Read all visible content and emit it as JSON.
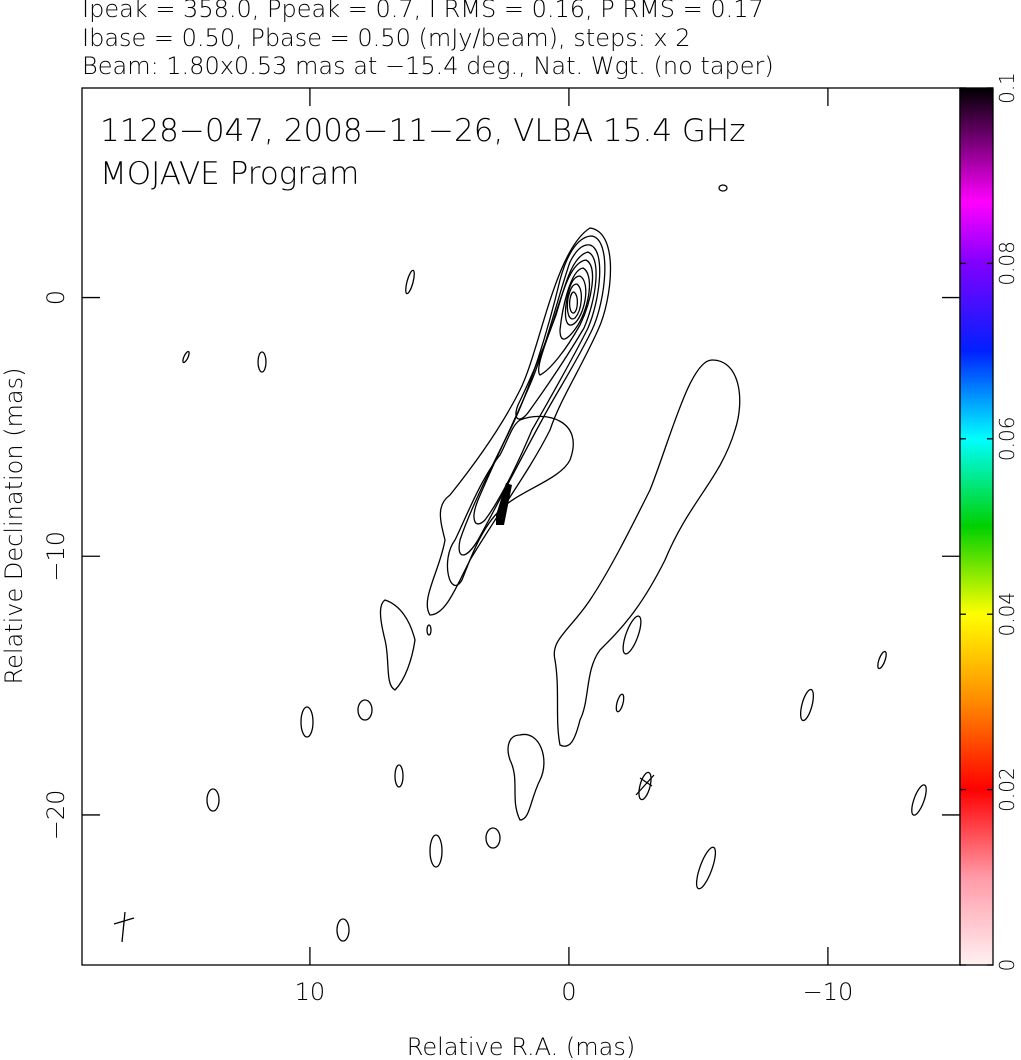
{
  "chart_data": {
    "type": "contour",
    "header": [
      "Ipeak = 358.0, Ppeak = 0.7, I RMS = 0.16, P RMS = 0.17",
      "Ibase = 0.50, Pbase = 0.50 (mJy/beam), steps: x 2",
      "Beam: 1.80x0.53 mas at −15.4 deg., Nat. Wgt. (no taper)"
    ],
    "annotations": [
      "1128−047, 2008−11−26, VLBA 15.4 GHz",
      "MOJAVE Program"
    ],
    "x_label": "Relative R.A. (mas)",
    "y_label": "Relative Declination (mas)",
    "xlim": [
      18.8,
      -15.1
    ],
    "xticks": [
      10,
      0,
      {
        "value": -10,
        "label": "−10"
      }
    ],
    "ylim": [
      -25.8,
      8.1
    ],
    "yticks": [
      0,
      {
        "value": -10,
        "label": "−10"
      },
      {
        "value": -20,
        "label": "−20"
      }
    ],
    "colorbar": {
      "lim": [
        0,
        0.1
      ],
      "ticks": [
        0,
        0.02,
        0.04,
        0.06,
        0.08,
        0.1
      ]
    }
  }
}
